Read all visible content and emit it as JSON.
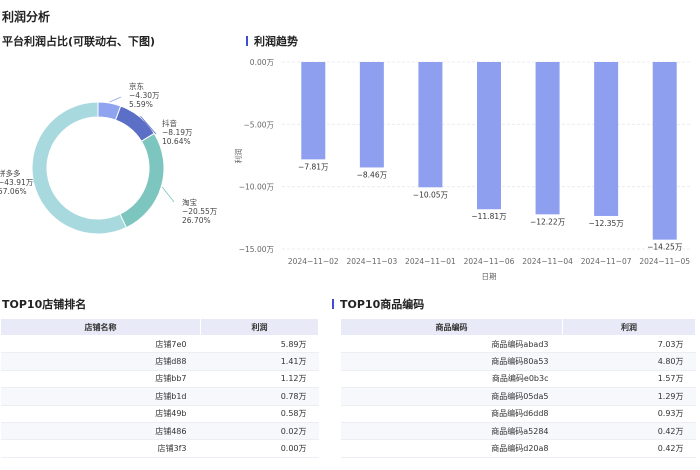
{
  "page_title": "利润分析",
  "pie_section": {
    "title": "平台利润占比(可联动右、下图)"
  },
  "trend_section": {
    "title": "利润趋势"
  },
  "shop_section": {
    "title": "TOP10店铺排名"
  },
  "product_section": {
    "title": "TOP10商品编码"
  },
  "colors": {
    "accent": "#3d4fd1",
    "bar": "#8e9ff0",
    "jd": "#8ea4ef",
    "douyin": "#5a6fc5",
    "taobao": "#7dc6c0",
    "pdd": "#a8d9df"
  },
  "chart_data": [
    {
      "type": "pie",
      "donut": true,
      "slices": [
        {
          "name": "京东",
          "value": -4.3,
          "value_label": "−4.30万",
          "percent_label": "5.59%",
          "percent": 5.59
        },
        {
          "name": "抖音",
          "value": -8.19,
          "value_label": "−8.19万",
          "percent_label": "10.64%",
          "percent": 10.64
        },
        {
          "name": "淘宝",
          "value": -20.55,
          "value_label": "−20.55万",
          "percent_label": "26.70%",
          "percent": 26.7
        },
        {
          "name": "拼多多",
          "value": -43.91,
          "value_label": "−43.91万",
          "percent_label": "57.06%",
          "percent": 57.06
        }
      ]
    },
    {
      "type": "bar",
      "categories": [
        "2024−11−02",
        "2024−11−03",
        "2024−11−01",
        "2024−11−06",
        "2024−11−04",
        "2024−11−07",
        "2024−11−05"
      ],
      "values": [
        -7.81,
        -8.46,
        -10.05,
        -11.81,
        -12.22,
        -12.35,
        -14.25
      ],
      "value_labels": [
        "−7.81万",
        "−8.46万",
        "−10.05万",
        "−11.81万",
        "−12.22万",
        "−12.35万",
        "−14.25万"
      ],
      "ylim": [
        -15,
        0
      ],
      "y_ticks": [
        0,
        -5,
        -10,
        -15
      ],
      "y_tick_labels": [
        "0.00万",
        "−5.00万",
        "−10.00万",
        "−15.00万"
      ],
      "xlabel": "日期",
      "ylabel": "利润",
      "grid": true
    }
  ],
  "shop_table": {
    "headers": [
      "店铺名称",
      "利润"
    ],
    "rows": [
      [
        "店铺7e0",
        "5.89万"
      ],
      [
        "店铺d88",
        "1.41万"
      ],
      [
        "店铺bb7",
        "1.12万"
      ],
      [
        "店铺b1d",
        "0.78万"
      ],
      [
        "店铺49b",
        "0.58万"
      ],
      [
        "店铺486",
        "0.02万"
      ],
      [
        "店铺3f3",
        "0.00万"
      ]
    ]
  },
  "product_table": {
    "headers": [
      "商品编码",
      "利润"
    ],
    "rows": [
      [
        "商品编码abad3",
        "7.03万"
      ],
      [
        "商品编码80a53",
        "4.80万"
      ],
      [
        "商品编码e0b3c",
        "1.57万"
      ],
      [
        "商品编码05da5",
        "1.29万"
      ],
      [
        "商品编码d6dd8",
        "0.93万"
      ],
      [
        "商品编码a5284",
        "0.42万"
      ],
      [
        "商品编码d20a8",
        "0.42万"
      ]
    ]
  }
}
